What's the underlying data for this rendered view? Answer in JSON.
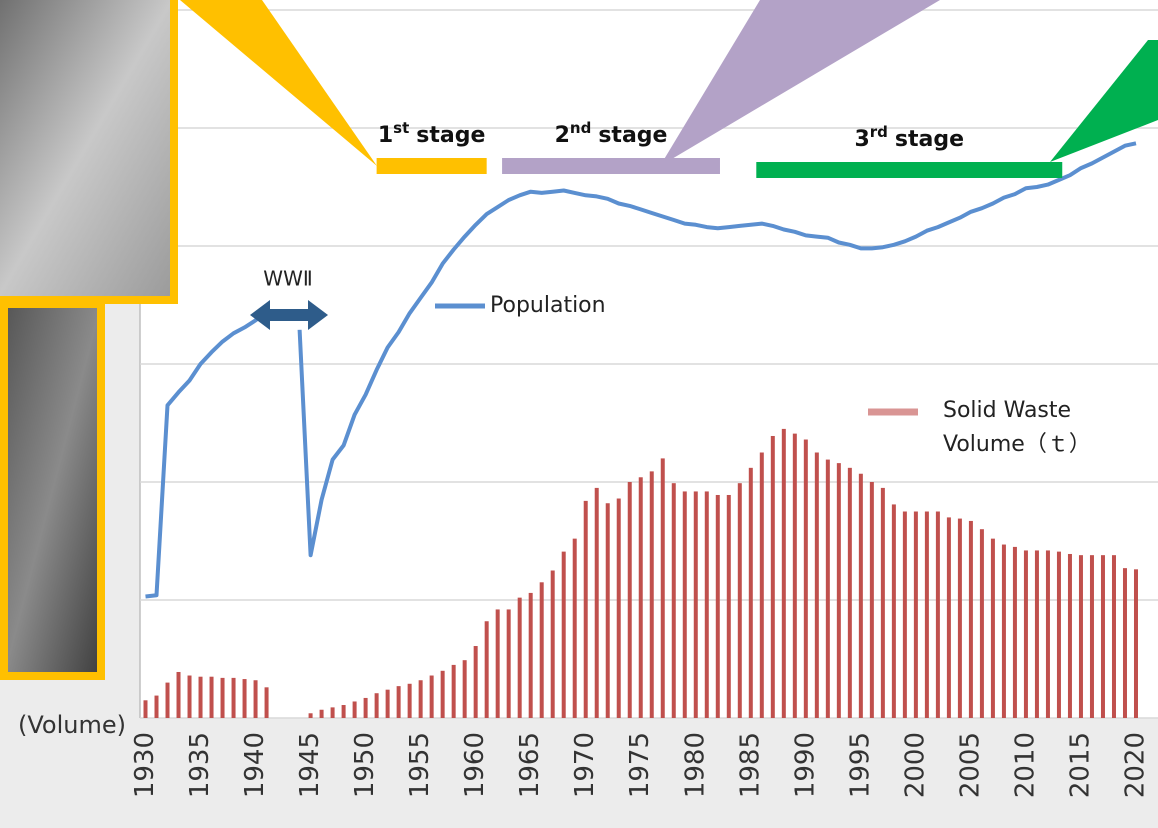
{
  "chart_data": {
    "type": "combo",
    "axis_note": "(Volume)",
    "x": [
      1930,
      1931,
      1932,
      1933,
      1934,
      1935,
      1936,
      1937,
      1938,
      1939,
      1940,
      1941,
      1942,
      1943,
      1944,
      1945,
      1946,
      1947,
      1948,
      1949,
      1950,
      1951,
      1952,
      1953,
      1954,
      1955,
      1956,
      1957,
      1958,
      1959,
      1960,
      1961,
      1962,
      1963,
      1964,
      1965,
      1966,
      1967,
      1968,
      1969,
      1970,
      1971,
      1972,
      1973,
      1974,
      1975,
      1976,
      1977,
      1978,
      1979,
      1980,
      1981,
      1982,
      1983,
      1984,
      1985,
      1986,
      1987,
      1988,
      1989,
      1990,
      1991,
      1992,
      1993,
      1994,
      1995,
      1996,
      1997,
      1998,
      1999,
      2000,
      2001,
      2002,
      2003,
      2004,
      2005,
      2006,
      2007,
      2008,
      2009,
      2010,
      2011,
      2012,
      2013,
      2014,
      2015,
      2016,
      2017,
      2018,
      2019,
      2020
    ],
    "xlim": [
      1929.5,
      2022
    ],
    "xticks": [
      1930,
      1935,
      1940,
      1945,
      1950,
      1955,
      1960,
      1965,
      1970,
      1975,
      1980,
      1985,
      1990,
      1995,
      2000,
      2005,
      2010,
      2015,
      2020
    ],
    "ylim": [
      0,
      6
    ],
    "yticks": [
      0,
      1,
      2,
      3,
      4,
      5,
      6
    ],
    "grid": true,
    "series": [
      {
        "name": "Solid Waste Volume（ｔ）",
        "type": "bar",
        "color": "#c0504d",
        "legend_color": "#d99594",
        "values": [
          0.15,
          0.19,
          0.3,
          0.39,
          0.36,
          0.35,
          0.35,
          0.34,
          0.34,
          0.33,
          0.32,
          0.26,
          null,
          null,
          null,
          0.04,
          0.07,
          0.09,
          0.11,
          0.14,
          0.17,
          0.21,
          0.24,
          0.27,
          0.29,
          0.32,
          0.36,
          0.4,
          0.45,
          0.49,
          0.61,
          0.82,
          0.92,
          0.92,
          1.02,
          1.06,
          1.15,
          1.25,
          1.41,
          1.52,
          1.84,
          1.95,
          1.82,
          1.86,
          2.0,
          2.04,
          2.09,
          2.2,
          1.99,
          1.92,
          1.92,
          1.92,
          1.89,
          1.89,
          1.99,
          2.12,
          2.25,
          2.39,
          2.45,
          2.41,
          2.36,
          2.25,
          2.19,
          2.16,
          2.12,
          2.07,
          2.0,
          1.95,
          1.81,
          1.75,
          1.75,
          1.75,
          1.75,
          1.7,
          1.69,
          1.67,
          1.6,
          1.52,
          1.47,
          1.45,
          1.42,
          1.42,
          1.42,
          1.41,
          1.39,
          1.38,
          1.38,
          1.38,
          1.38,
          1.27,
          1.26
        ]
      },
      {
        "name": "Population",
        "type": "line",
        "color": "#5b8fd0",
        "values": [
          1.03,
          1.04,
          2.65,
          2.76,
          2.86,
          3.0,
          3.1,
          3.19,
          3.26,
          3.31,
          3.37,
          3.44,
          null,
          null,
          3.29,
          1.38,
          1.85,
          2.19,
          2.31,
          2.57,
          2.74,
          2.95,
          3.14,
          3.27,
          3.43,
          3.56,
          3.69,
          3.85,
          3.97,
          4.08,
          4.18,
          4.27,
          4.33,
          4.39,
          4.43,
          4.46,
          4.45,
          4.46,
          4.47,
          4.45,
          4.43,
          4.42,
          4.4,
          4.36,
          4.34,
          4.31,
          4.28,
          4.25,
          4.22,
          4.19,
          4.18,
          4.16,
          4.15,
          4.16,
          4.17,
          4.18,
          4.19,
          4.17,
          4.14,
          4.12,
          4.09,
          4.08,
          4.07,
          4.03,
          4.01,
          3.98,
          3.98,
          3.99,
          4.01,
          4.04,
          4.08,
          4.13,
          4.16,
          4.2,
          4.24,
          4.29,
          4.32,
          4.36,
          4.41,
          4.44,
          4.49,
          4.5,
          4.52,
          4.56,
          4.6,
          4.66,
          4.7,
          4.75,
          4.8,
          4.85,
          4.87
        ]
      }
    ],
    "war_label": "WWⅡ",
    "stages": [
      {
        "number": "1",
        "suffix": "st",
        "text": "stage",
        "color": "#ffc000",
        "start": 1951,
        "end": 1961
      },
      {
        "number": "2",
        "suffix": "nd",
        "text": "stage",
        "color": "#b3a2c7",
        "start": 1962.4,
        "end": 1982.2
      },
      {
        "number": "3",
        "suffix": "rd",
        "text": "stage",
        "color": "#00b050",
        "start": 1985.5,
        "end": 2013.3
      }
    ]
  }
}
